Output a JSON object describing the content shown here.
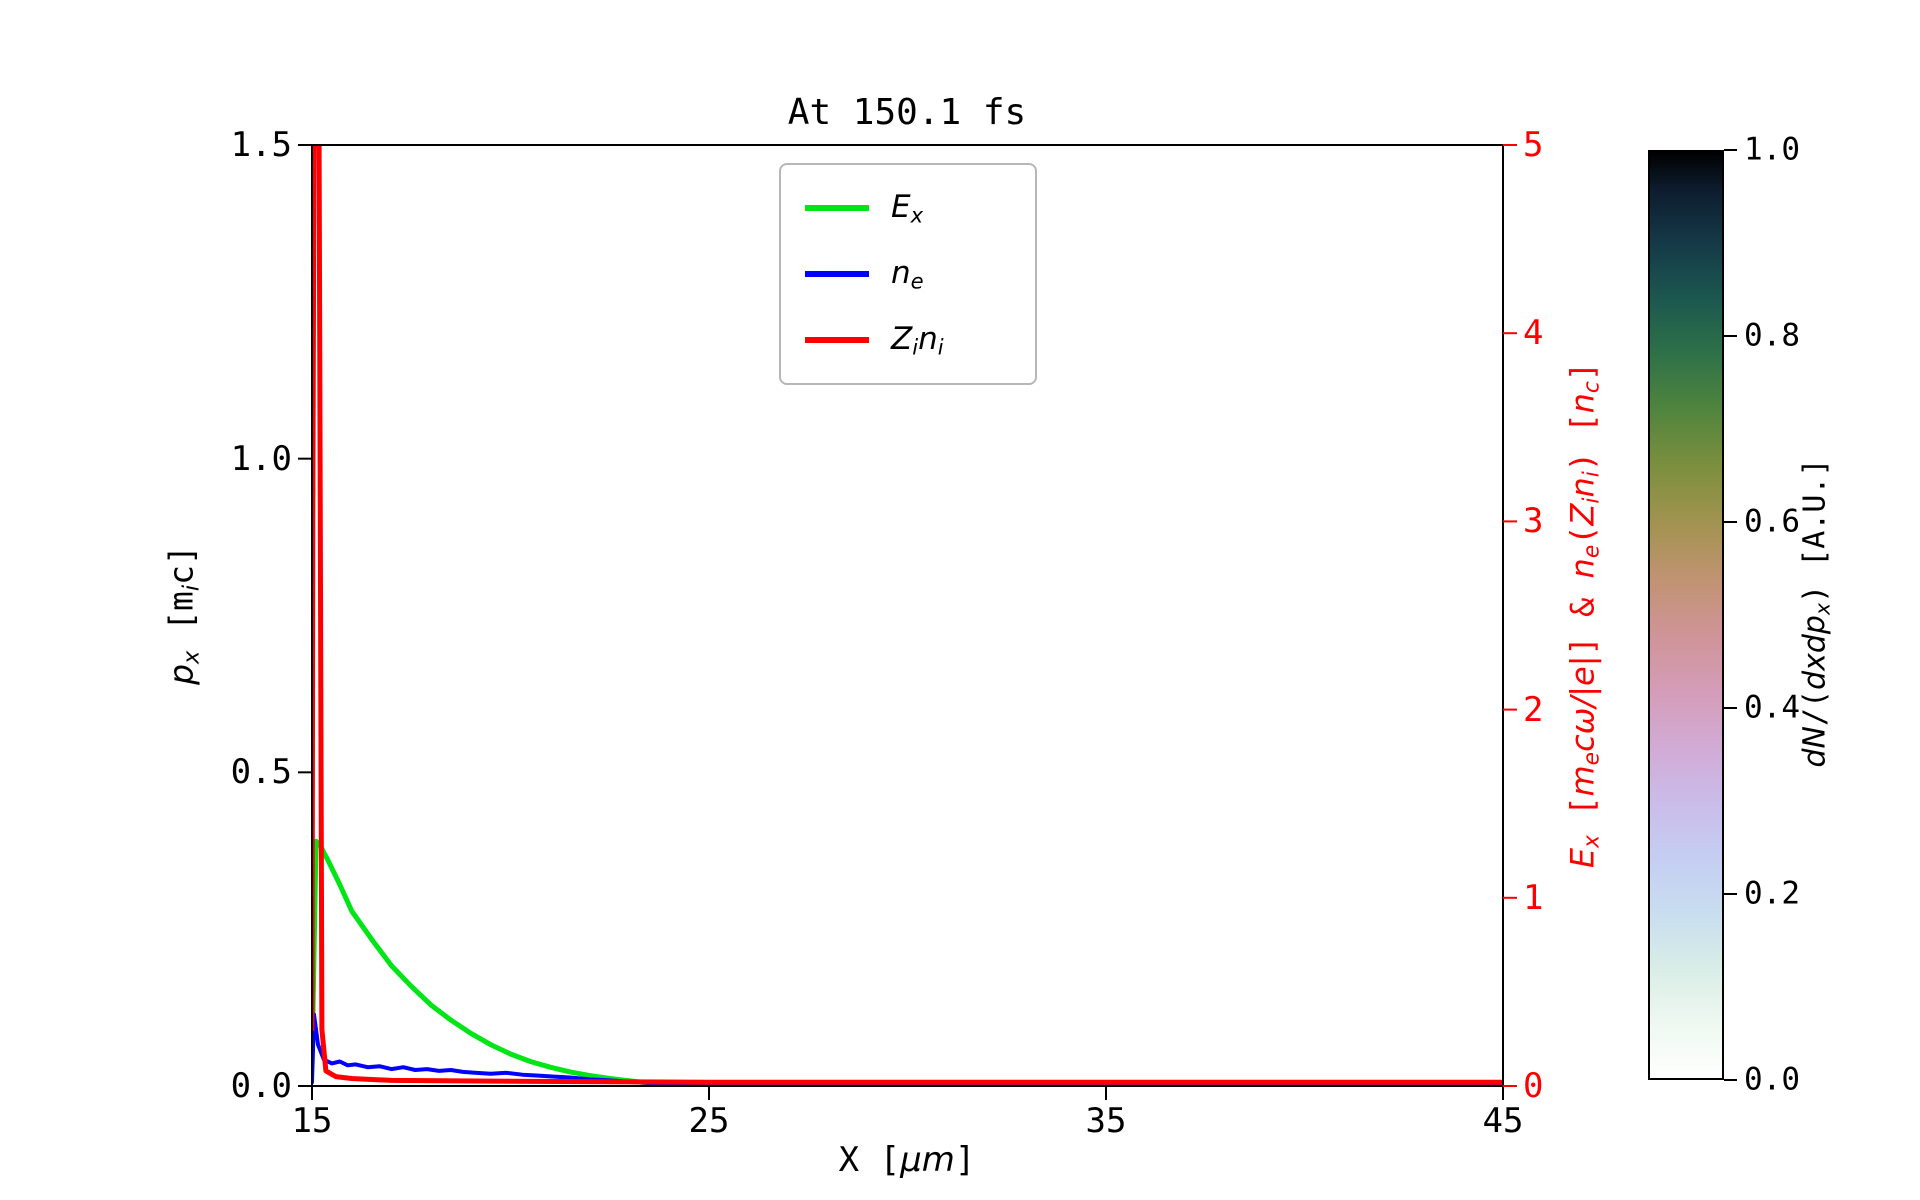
{
  "page": {
    "background": "#ffffff"
  },
  "labels": {
    "xlabel_parts": [
      {
        "t": "X [",
        "s": "up"
      },
      {
        "t": "μm",
        "s": "it"
      },
      {
        "t": "]",
        "s": "up"
      }
    ],
    "ylabel_left_parts": [
      {
        "t": "p",
        "s": "it"
      },
      {
        "t": "x",
        "s": "itsub"
      },
      {
        "t": " [m",
        "s": "up"
      },
      {
        "t": "i",
        "s": "itsub"
      },
      {
        "t": "c]",
        "s": "up"
      }
    ],
    "ylabel_right_parts": [
      {
        "t": "E",
        "s": "it"
      },
      {
        "t": "x",
        "s": "itsub"
      },
      {
        "t": " [",
        "s": "up"
      },
      {
        "t": "m",
        "s": "it"
      },
      {
        "t": "e",
        "s": "itsub"
      },
      {
        "t": "cω/|e|",
        "s": "it"
      },
      {
        "t": "] & ",
        "s": "up"
      },
      {
        "t": "n",
        "s": "it"
      },
      {
        "t": "e",
        "s": "itsub"
      },
      {
        "t": "(",
        "s": "up"
      },
      {
        "t": "Z",
        "s": "it"
      },
      {
        "t": "i",
        "s": "itsub"
      },
      {
        "t": "n",
        "s": "it"
      },
      {
        "t": "i",
        "s": "itsub"
      },
      {
        "t": ") [",
        "s": "up"
      },
      {
        "t": "n",
        "s": "it"
      },
      {
        "t": "c",
        "s": "itsub"
      },
      {
        "t": "]",
        "s": "up"
      }
    ],
    "colorbar_label_parts": [
      {
        "t": "dN",
        "s": "it"
      },
      {
        "t": "/(",
        "s": "up"
      },
      {
        "t": "dxdp",
        "s": "it"
      },
      {
        "t": "x",
        "s": "itsub"
      },
      {
        "t": ")",
        "s": "up"
      },
      {
        "t": " [A.U.]",
        "s": "up"
      }
    ],
    "legend_parts": [
      [
        {
          "t": "E",
          "s": "it"
        },
        {
          "t": "x",
          "s": "itsub"
        }
      ],
      [
        {
          "t": "n",
          "s": "it"
        },
        {
          "t": "e",
          "s": "itsub"
        }
      ],
      [
        {
          "t": "Z",
          "s": "it"
        },
        {
          "t": "i",
          "s": "itsub"
        },
        {
          "t": "n",
          "s": "it"
        },
        {
          "t": "i",
          "s": "itsub"
        }
      ]
    ]
  },
  "chart_data": {
    "type": "line",
    "title": "At 150.1 fs",
    "xlabel": "X [μm]",
    "ylabel_left": "p_x [m_i c]",
    "ylabel_right": "E_x [m_e cω/|e|] & n_e(Z_i n_i) [n_c]",
    "xlim": [
      15,
      45
    ],
    "ylim_left": [
      0.0,
      1.5
    ],
    "ylim_right": [
      0,
      5
    ],
    "grid": false,
    "legend_location": "upper center-left inside",
    "x_ticks": [
      {
        "v": 15,
        "label": "15"
      },
      {
        "v": 25,
        "label": "25"
      },
      {
        "v": 35,
        "label": "35"
      },
      {
        "v": 45,
        "label": "45"
      }
    ],
    "y_ticks_left": [
      {
        "v": 0.0,
        "label": "0.0"
      },
      {
        "v": 0.5,
        "label": "0.5"
      },
      {
        "v": 1.0,
        "label": "1.0"
      },
      {
        "v": 1.5,
        "label": "1.5"
      }
    ],
    "y_ticks_right": [
      {
        "v": 0,
        "label": "0"
      },
      {
        "v": 1,
        "label": "1"
      },
      {
        "v": 2,
        "label": "2"
      },
      {
        "v": 3,
        "label": "3"
      },
      {
        "v": 4,
        "label": "4"
      },
      {
        "v": 5,
        "label": "5"
      }
    ],
    "right_axis_color": "#ff0000",
    "spine_color": "#000000",
    "legend_entries": [
      "E_x",
      "n_e",
      "Z_i n_i"
    ],
    "series": [
      {
        "name": "E_x",
        "color": "#00e515",
        "axis": "right",
        "linewidth": 5,
        "x": [
          15.0,
          15.1,
          15.2,
          15.4,
          15.7,
          16.0,
          16.5,
          17.0,
          17.5,
          18.0,
          18.5,
          19.0,
          19.5,
          20.0,
          20.5,
          21.0,
          21.5,
          22.0,
          22.5,
          23.0,
          23.5,
          24.0,
          25.0,
          26.0,
          28.0,
          30.0,
          35.0,
          40.0,
          45.0
        ],
        "y": [
          0.1,
          1.3,
          1.28,
          1.2,
          1.07,
          0.93,
          0.78,
          0.64,
          0.53,
          0.43,
          0.35,
          0.28,
          0.22,
          0.17,
          0.13,
          0.1,
          0.075,
          0.055,
          0.04,
          0.027,
          0.016,
          0.009,
          0.003,
          0.001,
          0.0,
          0.0,
          0.0,
          0.0,
          0.0
        ]
      },
      {
        "name": "n_e",
        "color": "#0000ff",
        "axis": "right",
        "linewidth": 4,
        "x": [
          15.0,
          15.05,
          15.15,
          15.3,
          15.5,
          15.7,
          15.9,
          16.1,
          16.4,
          16.7,
          17.0,
          17.3,
          17.6,
          17.9,
          18.2,
          18.5,
          18.8,
          19.1,
          19.5,
          19.9,
          20.3,
          20.7,
          21.1,
          21.5,
          22.0,
          22.5,
          23.0,
          23.5,
          24.0,
          25.0,
          26.0,
          28.0,
          30.0,
          35.0,
          40.0,
          45.0
        ],
        "y": [
          0.02,
          0.38,
          0.22,
          0.14,
          0.12,
          0.13,
          0.11,
          0.115,
          0.1,
          0.105,
          0.09,
          0.1,
          0.085,
          0.09,
          0.08,
          0.085,
          0.075,
          0.07,
          0.065,
          0.07,
          0.06,
          0.055,
          0.05,
          0.045,
          0.035,
          0.03,
          0.022,
          0.016,
          0.012,
          0.006,
          0.003,
          0.001,
          0.0,
          0.0,
          0.0,
          0.0
        ]
      },
      {
        "name": "Z_i n_i",
        "color": "#ff0000",
        "axis": "right",
        "linewidth": 5,
        "x": [
          15.0,
          15.02,
          15.05,
          15.18,
          15.25,
          15.35,
          15.6,
          16.0,
          17.0,
          20.0,
          25.0,
          30.0,
          35.0,
          40.0,
          45.0
        ],
        "y": [
          0.3,
          3.0,
          5.0,
          5.0,
          0.3,
          0.08,
          0.05,
          0.04,
          0.03,
          0.025,
          0.02,
          0.02,
          0.02,
          0.02,
          0.02
        ]
      }
    ],
    "colorbar": {
      "label": "dN/(dxdp_x) [A.U.]",
      "ticks": [
        {
          "v": 0.0,
          "label": "0.0"
        },
        {
          "v": 0.2,
          "label": "0.2"
        },
        {
          "v": 0.4,
          "label": "0.4"
        },
        {
          "v": 0.6,
          "label": "0.6"
        },
        {
          "v": 0.8,
          "label": "0.8"
        },
        {
          "v": 1.0,
          "label": "1.0"
        }
      ],
      "range": [
        0.0,
        1.0
      ],
      "colormap_name": "cubehelix reversed (white at 0 to black at 1)",
      "gradient_stops": [
        [
          0.0,
          "#ffffff"
        ],
        [
          0.06,
          "#eef8f0"
        ],
        [
          0.12,
          "#d8ede7"
        ],
        [
          0.18,
          "#c8ddf0"
        ],
        [
          0.24,
          "#c5cdf2"
        ],
        [
          0.3,
          "#cbbbe9"
        ],
        [
          0.36,
          "#d2aad4"
        ],
        [
          0.42,
          "#d49cb7"
        ],
        [
          0.48,
          "#cf9497"
        ],
        [
          0.54,
          "#c09371"
        ],
        [
          0.6,
          "#a29350"
        ],
        [
          0.66,
          "#7c8f3e"
        ],
        [
          0.72,
          "#52853d"
        ],
        [
          0.78,
          "#2f7248"
        ],
        [
          0.84,
          "#1c584f"
        ],
        [
          0.9,
          "#153a48"
        ],
        [
          0.96,
          "#0d1c2e"
        ],
        [
          1.0,
          "#000000"
        ]
      ]
    }
  }
}
